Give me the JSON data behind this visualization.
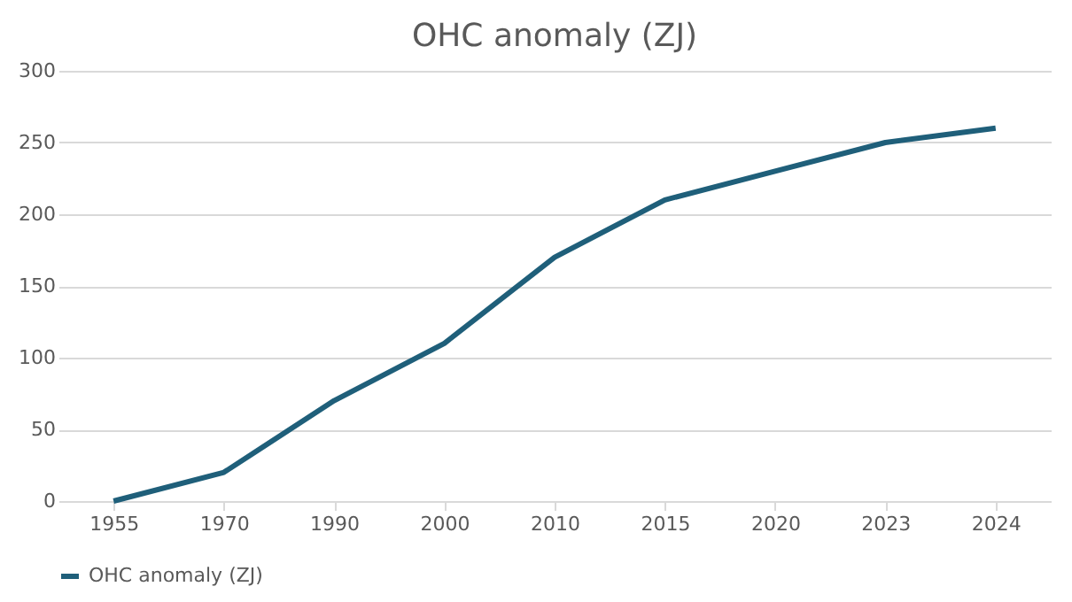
{
  "chart_data": {
    "type": "line",
    "title": "OHC anomaly (ZJ)",
    "categories": [
      "1955",
      "1970",
      "1990",
      "2000",
      "2010",
      "2015",
      "2020",
      "2023",
      "2024"
    ],
    "series": [
      {
        "name": "OHC anomaly (ZJ)",
        "color": "#1f5f7a",
        "values": [
          0,
          20,
          70,
          110,
          170,
          210,
          230,
          250,
          260
        ]
      }
    ],
    "ylim": [
      0,
      300
    ],
    "yticks": [
      0,
      50,
      100,
      150,
      200,
      250,
      300
    ],
    "grid": "y",
    "legend": "bottom",
    "marker": "none",
    "line_style": "solid"
  }
}
